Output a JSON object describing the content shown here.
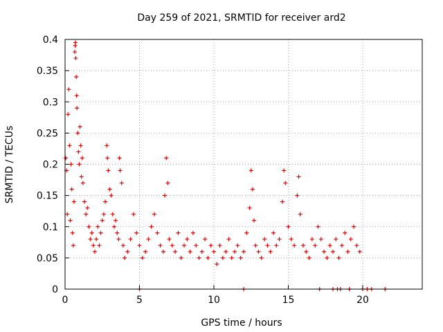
{
  "chart_data": {
    "type": "scatter",
    "title": "Day 259 of 2021, SRMTID for receiver ard2",
    "xlabel": "GPS time / hours",
    "ylabel": "SRMTID / TECUs",
    "xlim": [
      0,
      24
    ],
    "ylim": [
      0,
      0.4
    ],
    "xticks": [
      0,
      5,
      10,
      15,
      20
    ],
    "xtick_labels": [
      "0",
      "5",
      "10",
      "15",
      "20"
    ],
    "yticks": [
      0,
      0.05,
      0.1,
      0.15,
      0.2,
      0.25,
      0.3,
      0.35,
      0.4
    ],
    "ytick_labels": [
      "0",
      "0.05",
      "0.1",
      "0.15",
      "0.2",
      "0.25",
      "0.3",
      "0.35",
      "0.4"
    ],
    "grid": true,
    "marker": "+",
    "color": "#e00000",
    "series": [
      {
        "name": "SRMTID",
        "points": [
          [
            0.05,
            0.21
          ],
          [
            0.1,
            0.19
          ],
          [
            0.15,
            0.12
          ],
          [
            0.2,
            0.28
          ],
          [
            0.25,
            0.32
          ],
          [
            0.3,
            0.23
          ],
          [
            0.35,
            0.11
          ],
          [
            0.4,
            0.2
          ],
          [
            0.45,
            0.16
          ],
          [
            0.5,
            0.09
          ],
          [
            0.55,
            0.07
          ],
          [
            0.6,
            0.14
          ],
          [
            0.65,
            0.38
          ],
          [
            0.68,
            0.39
          ],
          [
            0.7,
            0.395
          ],
          [
            0.72,
            0.37
          ],
          [
            0.75,
            0.34
          ],
          [
            0.78,
            0.31
          ],
          [
            0.8,
            0.29
          ],
          [
            0.85,
            0.25
          ],
          [
            0.9,
            0.22
          ],
          [
            0.95,
            0.2
          ],
          [
            1.0,
            0.26
          ],
          [
            1.05,
            0.23
          ],
          [
            1.1,
            0.18
          ],
          [
            1.15,
            0.21
          ],
          [
            1.2,
            0.17
          ],
          [
            1.3,
            0.14
          ],
          [
            1.4,
            0.12
          ],
          [
            1.5,
            0.13
          ],
          [
            1.6,
            0.1
          ],
          [
            1.7,
            0.08
          ],
          [
            1.8,
            0.09
          ],
          [
            1.9,
            0.07
          ],
          [
            2.0,
            0.06
          ],
          [
            2.1,
            0.08
          ],
          [
            2.2,
            0.1
          ],
          [
            2.3,
            0.07
          ],
          [
            2.4,
            0.09
          ],
          [
            2.5,
            0.11
          ],
          [
            2.6,
            0.12
          ],
          [
            2.7,
            0.14
          ],
          [
            2.8,
            0.23
          ],
          [
            2.85,
            0.21
          ],
          [
            2.9,
            0.19
          ],
          [
            3.0,
            0.16
          ],
          [
            3.1,
            0.15
          ],
          [
            3.2,
            0.12
          ],
          [
            3.3,
            0.1
          ],
          [
            3.4,
            0.11
          ],
          [
            3.5,
            0.09
          ],
          [
            3.6,
            0.08
          ],
          [
            3.65,
            0.21
          ],
          [
            3.7,
            0.19
          ],
          [
            3.8,
            0.17
          ],
          [
            3.9,
            0.07
          ],
          [
            4.0,
            0.05
          ],
          [
            4.2,
            0.06
          ],
          [
            4.4,
            0.08
          ],
          [
            4.6,
            0.12
          ],
          [
            4.8,
            0.09
          ],
          [
            5.0,
            0.07
          ],
          [
            5.2,
            0.05
          ],
          [
            5.4,
            0.06
          ],
          [
            5.6,
            0.08
          ],
          [
            5.8,
            0.1
          ],
          [
            6.0,
            0.12
          ],
          [
            6.2,
            0.09
          ],
          [
            6.4,
            0.07
          ],
          [
            6.6,
            0.06
          ],
          [
            6.7,
            0.15
          ],
          [
            6.8,
            0.21
          ],
          [
            6.9,
            0.17
          ],
          [
            7.0,
            0.08
          ],
          [
            7.2,
            0.07
          ],
          [
            7.4,
            0.06
          ],
          [
            7.6,
            0.09
          ],
          [
            7.8,
            0.05
          ],
          [
            8.0,
            0.07
          ],
          [
            8.2,
            0.08
          ],
          [
            8.4,
            0.06
          ],
          [
            8.6,
            0.09
          ],
          [
            8.8,
            0.07
          ],
          [
            9.0,
            0.05
          ],
          [
            9.2,
            0.06
          ],
          [
            9.4,
            0.08
          ],
          [
            9.6,
            0.05
          ],
          [
            9.8,
            0.07
          ],
          [
            10.0,
            0.06
          ],
          [
            10.2,
            0.04
          ],
          [
            10.4,
            0.07
          ],
          [
            10.6,
            0.05
          ],
          [
            10.8,
            0.06
          ],
          [
            11.0,
            0.08
          ],
          [
            11.2,
            0.05
          ],
          [
            11.4,
            0.06
          ],
          [
            11.6,
            0.07
          ],
          [
            11.8,
            0.05
          ],
          [
            12.0,
            0.06
          ],
          [
            12.2,
            0.09
          ],
          [
            12.4,
            0.13
          ],
          [
            12.5,
            0.19
          ],
          [
            12.6,
            0.16
          ],
          [
            12.7,
            0.11
          ],
          [
            12.8,
            0.07
          ],
          [
            13.0,
            0.06
          ],
          [
            13.2,
            0.05
          ],
          [
            13.4,
            0.08
          ],
          [
            13.6,
            0.07
          ],
          [
            13.8,
            0.06
          ],
          [
            14.0,
            0.09
          ],
          [
            14.2,
            0.07
          ],
          [
            14.4,
            0.08
          ],
          [
            14.6,
            0.14
          ],
          [
            14.7,
            0.19
          ],
          [
            14.8,
            0.17
          ],
          [
            15.0,
            0.1
          ],
          [
            15.2,
            0.08
          ],
          [
            15.4,
            0.07
          ],
          [
            15.6,
            0.15
          ],
          [
            15.7,
            0.18
          ],
          [
            15.8,
            0.12
          ],
          [
            16.0,
            0.07
          ],
          [
            16.2,
            0.06
          ],
          [
            16.4,
            0.05
          ],
          [
            16.6,
            0.08
          ],
          [
            16.8,
            0.07
          ],
          [
            17.0,
            0.1
          ],
          [
            17.2,
            0.08
          ],
          [
            17.4,
            0.06
          ],
          [
            17.6,
            0.05
          ],
          [
            17.8,
            0.07
          ],
          [
            18.0,
            0.06
          ],
          [
            18.2,
            0.08
          ],
          [
            18.4,
            0.05
          ],
          [
            18.6,
            0.07
          ],
          [
            18.8,
            0.09
          ],
          [
            19.0,
            0.06
          ],
          [
            19.2,
            0.08
          ],
          [
            19.4,
            0.1
          ],
          [
            19.6,
            0.07
          ],
          [
            19.8,
            0.06
          ],
          [
            5.0,
            0.0
          ],
          [
            12.0,
            0.0
          ],
          [
            17.1,
            0.0
          ],
          [
            18.0,
            0.0
          ],
          [
            18.3,
            0.0
          ],
          [
            18.5,
            0.0
          ],
          [
            19.1,
            0.0
          ],
          [
            20.0,
            0.0
          ],
          [
            20.3,
            0.0
          ],
          [
            20.6,
            0.0
          ],
          [
            21.5,
            0.0
          ]
        ]
      }
    ]
  }
}
